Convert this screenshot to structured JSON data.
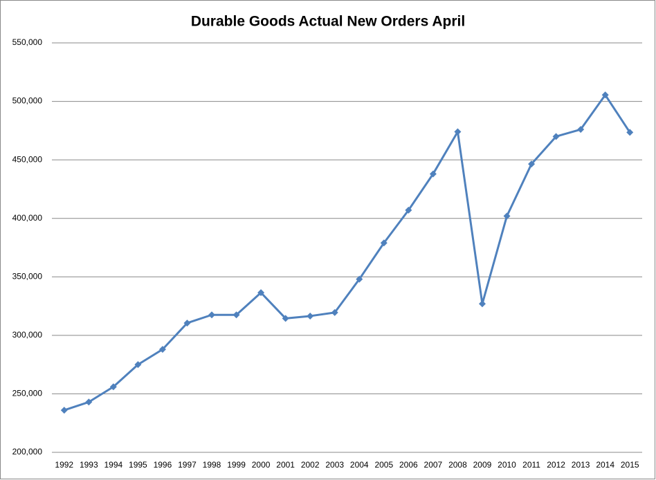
{
  "chart_data": {
    "type": "line",
    "title": "Durable Goods Actual New Orders April",
    "categories": [
      "1992",
      "1993",
      "1994",
      "1995",
      "1996",
      "1997",
      "1998",
      "1999",
      "2000",
      "2001",
      "2002",
      "2003",
      "2004",
      "2005",
      "2006",
      "2007",
      "2008",
      "2009",
      "2010",
      "2011",
      "2012",
      "2013",
      "2014",
      "2015"
    ],
    "values": [
      236000,
      243000,
      256000,
      275000,
      288000,
      310500,
      317500,
      317500,
      336500,
      314500,
      316500,
      319500,
      348000,
      379000,
      407000,
      438000,
      474000,
      327000,
      402000,
      446500,
      470000,
      476000,
      505500,
      473500
    ],
    "color": "#4f81bd",
    "ylim": [
      200000,
      550000
    ],
    "yticks": [
      {
        "value": 200000,
        "label": "200,000"
      },
      {
        "value": 250000,
        "label": "250,000"
      },
      {
        "value": 300000,
        "label": "300,000"
      },
      {
        "value": 350000,
        "label": "350,000"
      },
      {
        "value": 400000,
        "label": "400,000"
      },
      {
        "value": 450000,
        "label": "450,000"
      },
      {
        "value": 500000,
        "label": "500,000"
      },
      {
        "value": 550000,
        "label": "550,000"
      }
    ],
    "grid": true
  }
}
